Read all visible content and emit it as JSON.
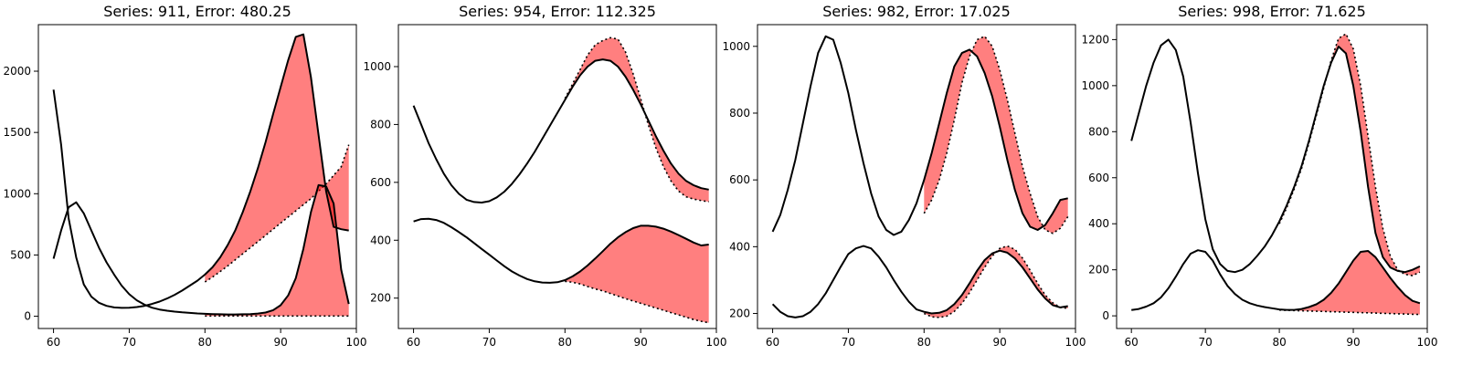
{
  "chart_data": [
    {
      "type": "line",
      "title": "Series: 911, Error: 480.25",
      "xlim": [
        58,
        100
      ],
      "ylim": [
        -100,
        2380
      ],
      "xticks": [
        60,
        70,
        80,
        90,
        100
      ],
      "yticks": [
        0,
        500,
        1000,
        1500,
        2000
      ],
      "fill_color": "#ff0000",
      "fill_opacity": 0.5,
      "series": [
        {
          "actual_x": [
            60,
            61,
            62,
            63,
            64,
            65,
            66,
            67,
            68,
            69,
            70,
            71,
            72,
            73,
            74,
            75,
            76,
            77,
            78,
            79,
            80,
            81,
            82,
            83,
            84,
            85,
            86,
            87,
            88,
            89,
            90,
            91,
            92,
            93,
            94,
            95,
            96,
            97,
            98,
            99
          ],
          "actual_y": [
            1850,
            1400,
            800,
            480,
            260,
            160,
            110,
            85,
            72,
            68,
            70,
            75,
            85,
            100,
            120,
            145,
            175,
            210,
            250,
            290,
            340,
            400,
            480,
            580,
            700,
            850,
            1020,
            1210,
            1420,
            1650,
            1870,
            2090,
            2280,
            2300,
            1950,
            1480,
            1020,
            730,
            710,
            700
          ],
          "forecast_x": [
            80,
            81,
            82,
            83,
            84,
            85,
            86,
            87,
            88,
            89,
            90,
            91,
            92,
            93,
            94,
            95,
            96,
            97,
            98,
            99
          ],
          "forecast_y": [
            280,
            320,
            365,
            410,
            460,
            510,
            560,
            610,
            660,
            710,
            760,
            810,
            860,
            910,
            960,
            1020,
            1080,
            1150,
            1220,
            1400
          ]
        },
        {
          "actual_x": [
            60,
            61,
            62,
            63,
            64,
            65,
            66,
            67,
            68,
            69,
            70,
            71,
            72,
            73,
            74,
            75,
            76,
            77,
            78,
            79,
            80,
            81,
            82,
            83,
            84,
            85,
            86,
            87,
            88,
            89,
            90,
            91,
            92,
            93,
            94,
            95,
            96,
            97,
            98,
            99
          ],
          "actual_y": [
            470,
            700,
            890,
            930,
            840,
            700,
            560,
            440,
            340,
            250,
            180,
            130,
            95,
            70,
            55,
            45,
            38,
            32,
            27,
            23,
            20,
            18,
            16,
            15,
            15,
            16,
            18,
            22,
            30,
            50,
            90,
            170,
            310,
            550,
            850,
            1070,
            1060,
            920,
            380,
            100
          ],
          "forecast_x": [
            80,
            81,
            82,
            83,
            84,
            85,
            86,
            87,
            88,
            89,
            90,
            91,
            92,
            93,
            94,
            95,
            96,
            97,
            98,
            99
          ],
          "forecast_y": [
            2,
            2,
            2,
            2,
            2,
            2,
            2,
            2,
            2,
            2,
            2,
            2,
            2,
            2,
            2,
            2,
            2,
            2,
            2,
            2
          ]
        }
      ]
    },
    {
      "type": "line",
      "title": "Series: 954, Error: 112.325",
      "xlim": [
        58,
        100
      ],
      "ylim": [
        95,
        1145
      ],
      "xticks": [
        60,
        70,
        80,
        90,
        100
      ],
      "yticks": [
        200,
        400,
        600,
        800,
        1000
      ],
      "fill_color": "#ff0000",
      "fill_opacity": 0.5,
      "series": [
        {
          "actual_x": [
            60,
            61,
            62,
            63,
            64,
            65,
            66,
            67,
            68,
            69,
            70,
            71,
            72,
            73,
            74,
            75,
            76,
            77,
            78,
            79,
            80,
            81,
            82,
            83,
            84,
            85,
            86,
            87,
            88,
            89,
            90,
            91,
            92,
            93,
            94,
            95,
            96,
            97,
            98,
            99
          ],
          "actual_y": [
            865,
            800,
            735,
            680,
            630,
            590,
            560,
            540,
            532,
            530,
            535,
            548,
            568,
            595,
            628,
            665,
            705,
            750,
            795,
            840,
            885,
            930,
            970,
            1000,
            1020,
            1025,
            1020,
            1000,
            965,
            920,
            870,
            815,
            760,
            710,
            665,
            630,
            605,
            590,
            580,
            575
          ],
          "forecast_x": [
            80,
            81,
            82,
            83,
            84,
            85,
            86,
            87,
            88,
            89,
            90,
            91,
            92,
            93,
            94,
            95,
            96,
            97,
            98,
            99
          ],
          "forecast_y": [
            890,
            940,
            990,
            1040,
            1075,
            1090,
            1100,
            1095,
            1050,
            975,
            890,
            800,
            720,
            655,
            605,
            570,
            550,
            542,
            537,
            533
          ]
        },
        {
          "actual_x": [
            60,
            61,
            62,
            63,
            64,
            65,
            66,
            67,
            68,
            69,
            70,
            71,
            72,
            73,
            74,
            75,
            76,
            77,
            78,
            79,
            80,
            81,
            82,
            83,
            84,
            85,
            86,
            87,
            88,
            89,
            90,
            91,
            92,
            93,
            94,
            95,
            96,
            97,
            98,
            99
          ],
          "actual_y": [
            465,
            473,
            474,
            470,
            460,
            445,
            428,
            410,
            390,
            370,
            350,
            330,
            310,
            292,
            278,
            266,
            258,
            254,
            253,
            255,
            262,
            275,
            292,
            313,
            337,
            362,
            388,
            410,
            428,
            442,
            450,
            450,
            447,
            440,
            430,
            418,
            405,
            392,
            382,
            385
          ],
          "forecast_x": [
            80,
            81,
            82,
            83,
            84,
            85,
            86,
            87,
            88,
            89,
            90,
            91,
            92,
            93,
            94,
            95,
            96,
            97,
            98,
            99
          ],
          "forecast_y": [
            258,
            255,
            249,
            240,
            232,
            225,
            216,
            207,
            198,
            190,
            182,
            174,
            166,
            158,
            150,
            142,
            134,
            126,
            120,
            115
          ]
        }
      ]
    },
    {
      "type": "line",
      "title": "Series: 982, Error: 17.025",
      "xlim": [
        58,
        100
      ],
      "ylim": [
        155,
        1065
      ],
      "xticks": [
        60,
        70,
        80,
        90,
        100
      ],
      "yticks": [
        200,
        400,
        600,
        800,
        1000
      ],
      "fill_color": "#ff0000",
      "fill_opacity": 0.5,
      "series": [
        {
          "actual_x": [
            60,
            61,
            62,
            63,
            64,
            65,
            66,
            67,
            68,
            69,
            70,
            71,
            72,
            73,
            74,
            75,
            76,
            77,
            78,
            79,
            80,
            81,
            82,
            83,
            84,
            85,
            86,
            87,
            88,
            89,
            90,
            91,
            92,
            93,
            94,
            95,
            96,
            97,
            98,
            99
          ],
          "actual_y": [
            445,
            495,
            570,
            660,
            770,
            880,
            980,
            1030,
            1020,
            950,
            860,
            750,
            650,
            560,
            490,
            450,
            435,
            445,
            480,
            530,
            600,
            680,
            770,
            860,
            940,
            980,
            990,
            970,
            920,
            850,
            760,
            660,
            570,
            500,
            460,
            450,
            465,
            500,
            540,
            545
          ],
          "forecast_x": [
            80,
            81,
            82,
            83,
            84,
            85,
            86,
            87,
            88,
            89,
            90,
            91,
            92,
            93,
            94,
            95,
            96,
            97,
            98,
            99
          ],
          "forecast_y": [
            500,
            540,
            600,
            680,
            780,
            890,
            970,
            1020,
            1030,
            1000,
            930,
            840,
            740,
            640,
            560,
            490,
            450,
            440,
            455,
            490
          ]
        },
        {
          "actual_x": [
            60,
            61,
            62,
            63,
            64,
            65,
            66,
            67,
            68,
            69,
            70,
            71,
            72,
            73,
            74,
            75,
            76,
            77,
            78,
            79,
            80,
            81,
            82,
            83,
            84,
            85,
            86,
            87,
            88,
            89,
            90,
            91,
            92,
            93,
            94,
            95,
            96,
            97,
            98,
            99
          ],
          "actual_y": [
            228,
            205,
            192,
            188,
            192,
            205,
            228,
            260,
            300,
            340,
            378,
            395,
            402,
            395,
            370,
            338,
            300,
            265,
            235,
            212,
            205,
            200,
            202,
            210,
            228,
            255,
            290,
            328,
            360,
            380,
            388,
            382,
            365,
            338,
            305,
            272,
            245,
            225,
            218,
            222
          ],
          "forecast_x": [
            80,
            81,
            82,
            83,
            84,
            85,
            86,
            87,
            88,
            89,
            90,
            91,
            92,
            93,
            94,
            95,
            96,
            97,
            98,
            99
          ],
          "forecast_y": [
            200,
            190,
            188,
            192,
            206,
            230,
            262,
            300,
            338,
            372,
            395,
            402,
            392,
            366,
            330,
            290,
            255,
            232,
            218,
            215
          ]
        }
      ]
    },
    {
      "type": "line",
      "title": "Series: 998, Error: 71.625",
      "xlim": [
        58,
        100
      ],
      "ylim": [
        -55,
        1265
      ],
      "xticks": [
        60,
        70,
        80,
        90,
        100
      ],
      "yticks": [
        0,
        200,
        400,
        600,
        800,
        1000,
        1200
      ],
      "fill_color": "#ff0000",
      "fill_opacity": 0.5,
      "series": [
        {
          "actual_x": [
            60,
            61,
            62,
            63,
            64,
            65,
            66,
            67,
            68,
            69,
            70,
            71,
            72,
            73,
            74,
            75,
            76,
            77,
            78,
            79,
            80,
            81,
            82,
            83,
            84,
            85,
            86,
            87,
            88,
            89,
            90,
            91,
            92,
            93,
            94,
            95,
            96,
            97,
            98,
            99
          ],
          "actual_y": [
            760,
            880,
            1000,
            1100,
            1175,
            1200,
            1155,
            1040,
            840,
            620,
            420,
            290,
            225,
            195,
            190,
            200,
            225,
            260,
            300,
            350,
            410,
            480,
            560,
            650,
            760,
            880,
            1000,
            1100,
            1170,
            1140,
            1000,
            800,
            560,
            360,
            255,
            210,
            195,
            190,
            200,
            215
          ],
          "forecast_x": [
            80,
            81,
            82,
            83,
            84,
            85,
            86,
            87,
            88,
            89,
            90,
            91,
            92,
            93,
            94,
            95,
            96,
            97,
            98,
            99
          ],
          "forecast_y": [
            400,
            470,
            550,
            640,
            750,
            870,
            990,
            1110,
            1205,
            1225,
            1160,
            1000,
            780,
            560,
            380,
            260,
            200,
            180,
            175,
            190
          ]
        },
        {
          "actual_x": [
            60,
            61,
            62,
            63,
            64,
            65,
            66,
            67,
            68,
            69,
            70,
            71,
            72,
            73,
            74,
            75,
            76,
            77,
            78,
            79,
            80,
            81,
            82,
            83,
            84,
            85,
            86,
            87,
            88,
            89,
            90,
            91,
            92,
            93,
            94,
            95,
            96,
            97,
            98,
            99
          ],
          "actual_y": [
            25,
            30,
            40,
            55,
            80,
            120,
            170,
            225,
            270,
            285,
            278,
            240,
            180,
            130,
            95,
            70,
            55,
            45,
            38,
            33,
            28,
            26,
            26,
            30,
            38,
            50,
            70,
            100,
            140,
            190,
            240,
            278,
            282,
            255,
            210,
            165,
            125,
            90,
            65,
            55
          ],
          "forecast_x": [
            80,
            81,
            82,
            83,
            84,
            85,
            86,
            87,
            88,
            89,
            90,
            91,
            92,
            93,
            94,
            95,
            96,
            97,
            98,
            99
          ],
          "forecast_y": [
            25,
            24,
            23,
            22,
            21,
            20,
            19,
            18,
            17,
            16,
            15,
            14,
            13,
            12,
            11,
            10,
            9,
            8,
            7,
            6
          ]
        }
      ]
    }
  ]
}
